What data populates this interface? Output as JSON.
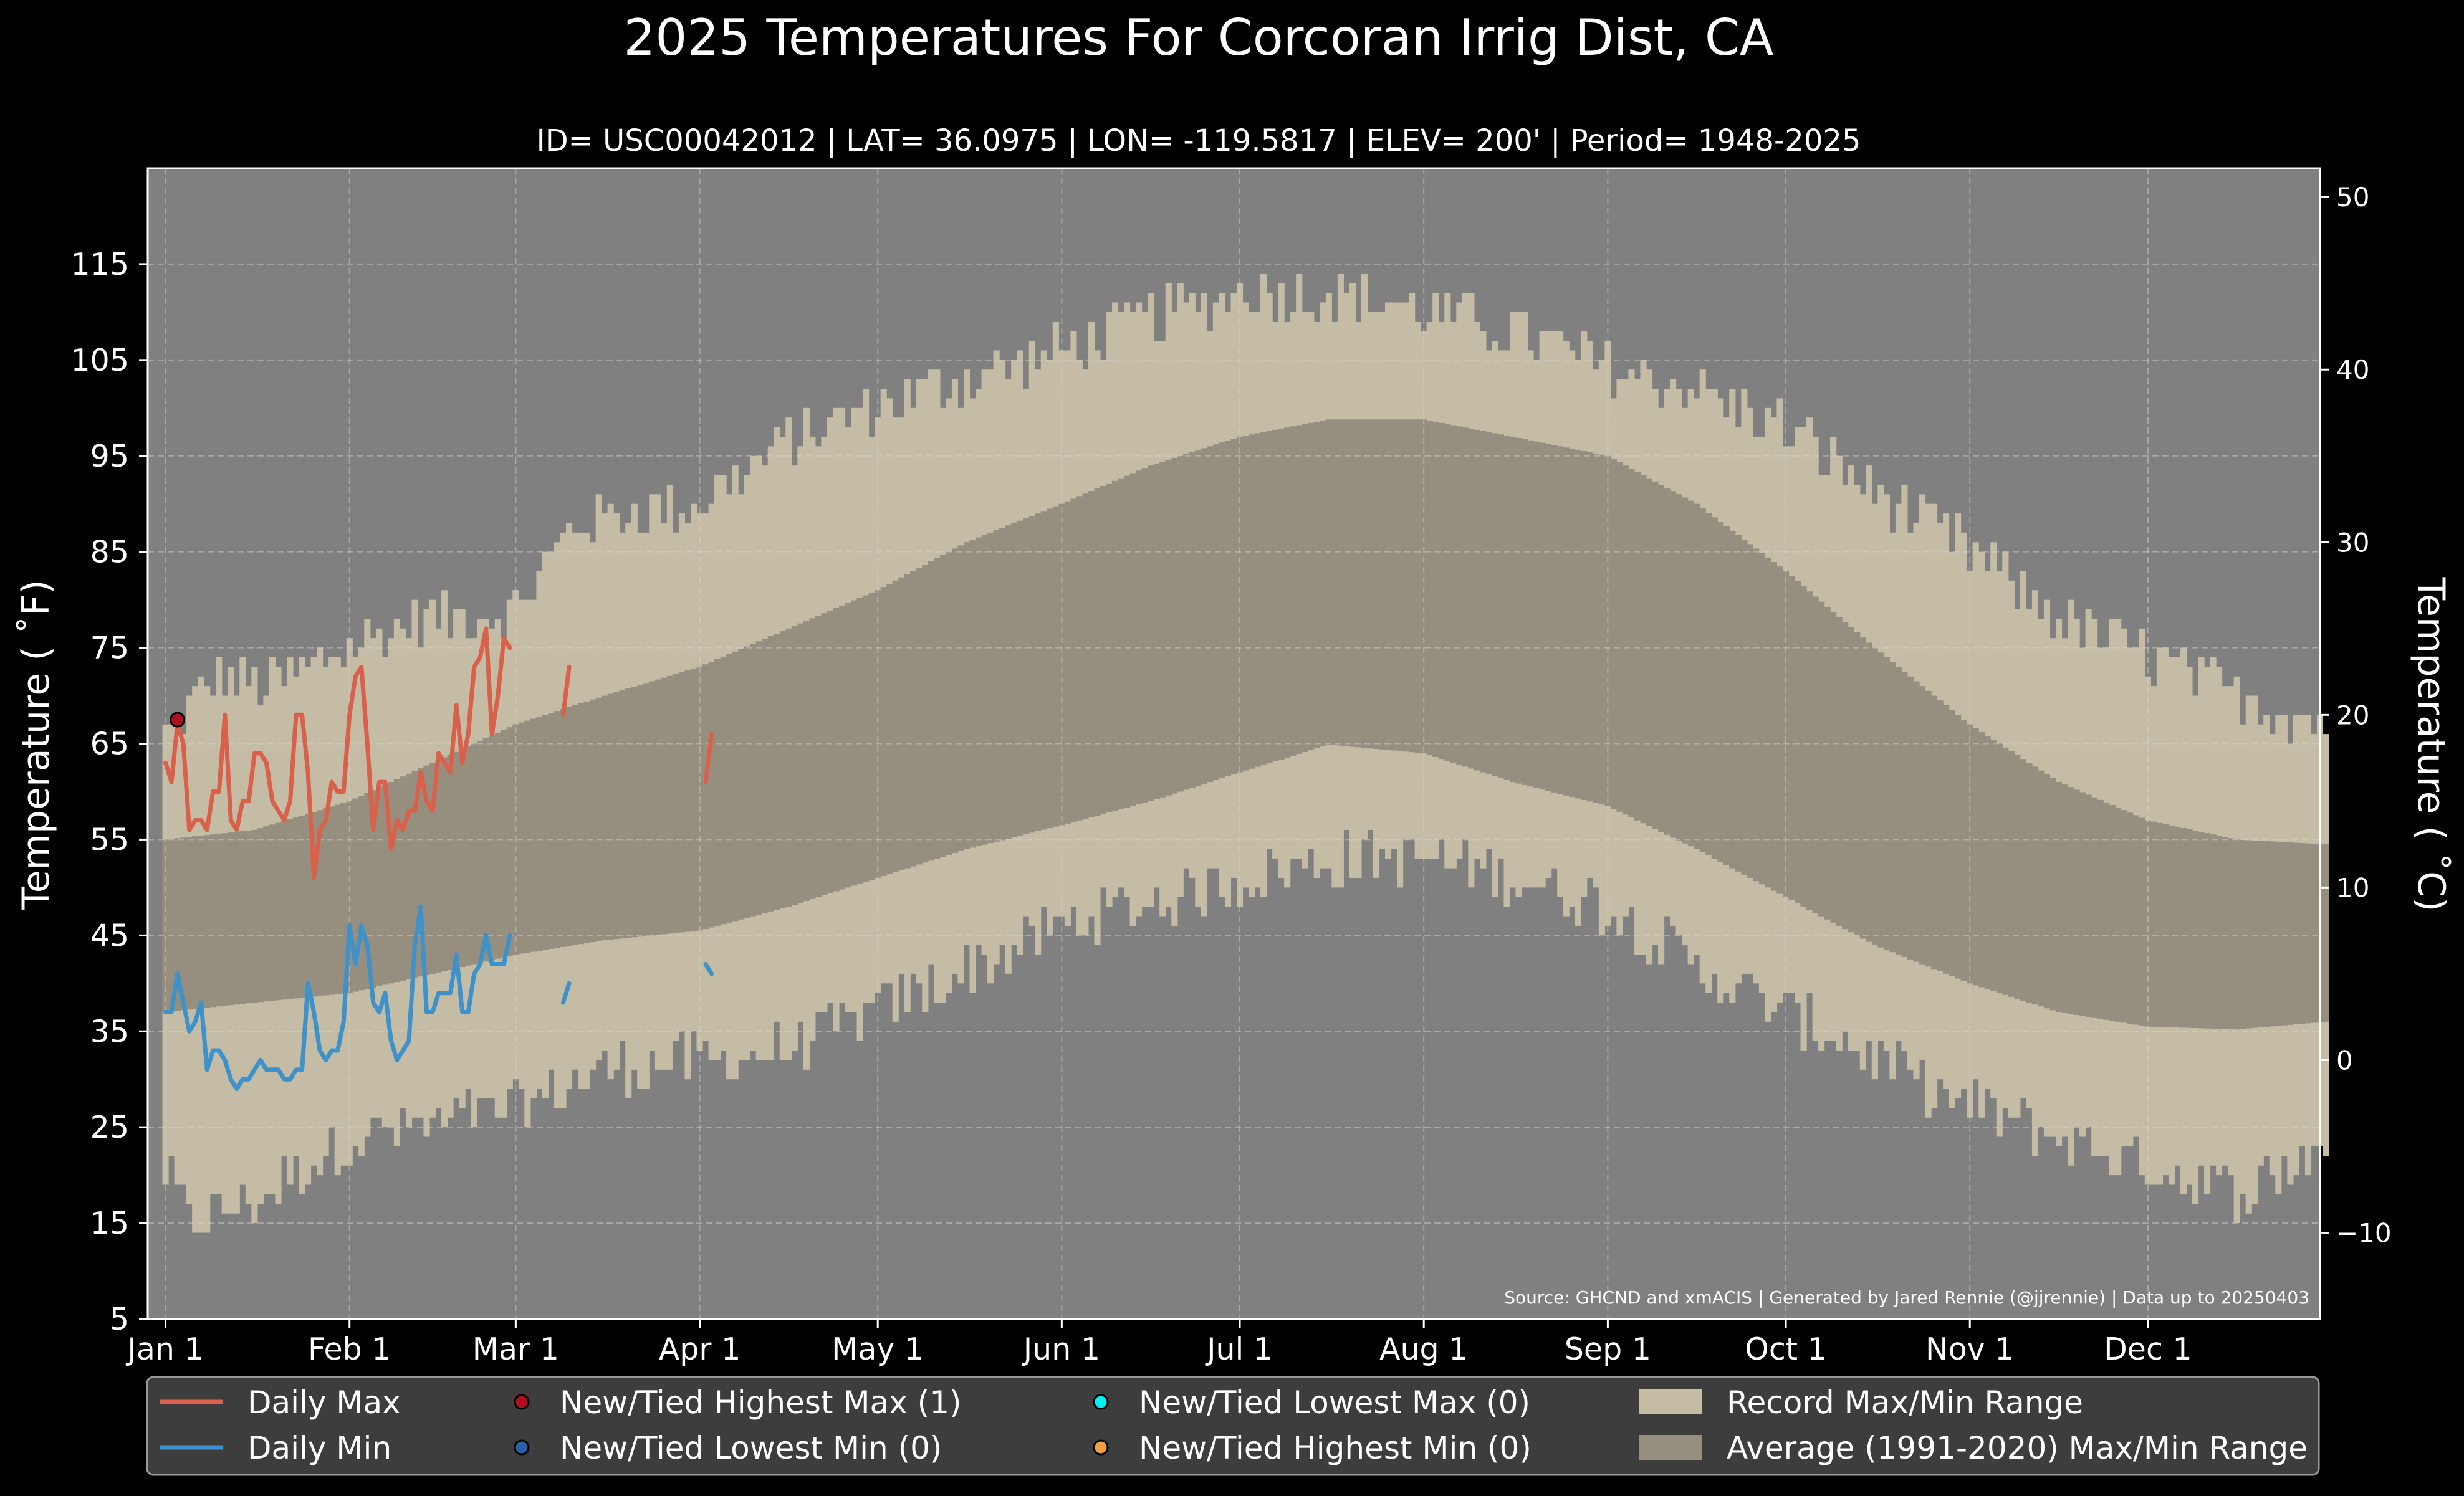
{
  "chart_data": {
    "type": "line",
    "title": "2025 Temperatures For Corcoran Irrig Dist, CA",
    "subtitle": "ID= USC00042012 | LAT= 36.0975 | LON= -119.5817 | ELEV= 200' | Period= 1948-2025",
    "ylabel_left": "Temperature ( $^\\circ$F)",
    "ylabel_left_display": "Temperature ( ˚F)",
    "ylabel_right_display": "Temperature ( ˚C)",
    "source": "Source: GHCND and xmACIS | Generated by Jared Rennie (@jjrennie) | Data up to 20250403",
    "ylim_f": [
      5,
      125
    ],
    "yticks_f": [
      5,
      15,
      25,
      35,
      45,
      55,
      65,
      75,
      85,
      95,
      105,
      115
    ],
    "yticks_c": [
      -10,
      0,
      10,
      20,
      30,
      40,
      50
    ],
    "xlim_day": [
      -2,
      364
    ],
    "xticks": [
      {
        "label": "Jan 1",
        "day": 1
      },
      {
        "label": "Feb 1",
        "day": 32
      },
      {
        "label": "Mar 1",
        "day": 60
      },
      {
        "label": "Apr 1",
        "day": 91
      },
      {
        "label": "May 1",
        "day": 121
      },
      {
        "label": "Jun 1",
        "day": 152
      },
      {
        "label": "Jul 1",
        "day": 182
      },
      {
        "label": "Aug 1",
        "day": 213
      },
      {
        "label": "Sep 1",
        "day": 244
      },
      {
        "label": "Oct 1",
        "day": 274
      },
      {
        "label": "Nov 1",
        "day": 305
      },
      {
        "label": "Dec 1",
        "day": 335
      }
    ],
    "grid": true,
    "legend_position": "bottom",
    "record_max_anchors": [
      [
        1,
        66
      ],
      [
        10,
        72
      ],
      [
        20,
        71
      ],
      [
        32,
        75
      ],
      [
        45,
        78
      ],
      [
        60,
        79
      ],
      [
        70,
        88
      ],
      [
        91,
        90
      ],
      [
        105,
        96
      ],
      [
        121,
        100
      ],
      [
        135,
        103
      ],
      [
        152,
        106
      ],
      [
        165,
        109
      ],
      [
        182,
        112
      ],
      [
        198,
        112
      ],
      [
        213,
        110
      ],
      [
        229,
        108
      ],
      [
        244,
        104
      ],
      [
        258,
        102
      ],
      [
        274,
        98
      ],
      [
        290,
        91
      ],
      [
        305,
        85
      ],
      [
        320,
        78
      ],
      [
        335,
        74
      ],
      [
        350,
        70
      ],
      [
        365,
        67
      ]
    ],
    "record_min_anchors": [
      [
        1,
        20
      ],
      [
        5,
        15
      ],
      [
        15,
        17
      ],
      [
        32,
        24
      ],
      [
        45,
        25
      ],
      [
        60,
        27
      ],
      [
        75,
        31
      ],
      [
        91,
        32
      ],
      [
        105,
        33
      ],
      [
        121,
        37
      ],
      [
        135,
        41
      ],
      [
        152,
        46
      ],
      [
        165,
        48
      ],
      [
        182,
        51
      ],
      [
        198,
        53
      ],
      [
        213,
        53
      ],
      [
        229,
        51
      ],
      [
        244,
        48
      ],
      [
        258,
        42
      ],
      [
        274,
        37
      ],
      [
        290,
        32
      ],
      [
        305,
        27
      ],
      [
        320,
        24
      ],
      [
        335,
        21
      ],
      [
        350,
        18
      ],
      [
        365,
        23
      ]
    ],
    "avg_max_anchors": [
      [
        1,
        55
      ],
      [
        16,
        56
      ],
      [
        32,
        59
      ],
      [
        46,
        63
      ],
      [
        60,
        67
      ],
      [
        75,
        70
      ],
      [
        91,
        73
      ],
      [
        106,
        77
      ],
      [
        121,
        81
      ],
      [
        136,
        86
      ],
      [
        152,
        90
      ],
      [
        167,
        94
      ],
      [
        182,
        97
      ],
      [
        197,
        98.8
      ],
      [
        213,
        98.8
      ],
      [
        228,
        97
      ],
      [
        244,
        95
      ],
      [
        259,
        90
      ],
      [
        274,
        83
      ],
      [
        289,
        75
      ],
      [
        305,
        67
      ],
      [
        320,
        61
      ],
      [
        335,
        57
      ],
      [
        350,
        55
      ],
      [
        365,
        54.5
      ]
    ],
    "avg_min_anchors": [
      [
        1,
        37
      ],
      [
        16,
        38
      ],
      [
        32,
        39
      ],
      [
        46,
        41
      ],
      [
        60,
        43
      ],
      [
        75,
        44.5
      ],
      [
        91,
        45.5
      ],
      [
        106,
        48
      ],
      [
        121,
        51
      ],
      [
        136,
        54
      ],
      [
        152,
        56.5
      ],
      [
        167,
        59
      ],
      [
        182,
        62
      ],
      [
        197,
        64.9
      ],
      [
        213,
        64
      ],
      [
        228,
        61
      ],
      [
        244,
        58.5
      ],
      [
        259,
        54
      ],
      [
        274,
        49
      ],
      [
        289,
        44
      ],
      [
        305,
        40
      ],
      [
        320,
        37
      ],
      [
        335,
        35.5
      ],
      [
        350,
        35.2
      ],
      [
        365,
        36
      ]
    ],
    "series": [
      {
        "name": "Daily Max",
        "color": "#d9614c",
        "segments": [
          [
            [
              1,
              63
            ],
            [
              2,
              61
            ],
            [
              3,
              67
            ],
            [
              4,
              65
            ],
            [
              5,
              56
            ],
            [
              6,
              57
            ],
            [
              7,
              57
            ],
            [
              8,
              56
            ],
            [
              9,
              60
            ],
            [
              10,
              60
            ],
            [
              11,
              68
            ],
            [
              12,
              57
            ],
            [
              13,
              56
            ],
            [
              14,
              59
            ],
            [
              15,
              59
            ],
            [
              16,
              64
            ],
            [
              17,
              64
            ],
            [
              18,
              63
            ],
            [
              19,
              59
            ],
            [
              20,
              58
            ],
            [
              21,
              57
            ],
            [
              22,
              59
            ],
            [
              23,
              68
            ],
            [
              24,
              68
            ],
            [
              25,
              62
            ],
            [
              26,
              51
            ],
            [
              27,
              56
            ],
            [
              28,
              57
            ],
            [
              29,
              61
            ],
            [
              30,
              60
            ],
            [
              31,
              60
            ],
            [
              32,
              68
            ],
            [
              33,
              72
            ],
            [
              34,
              73
            ],
            [
              35,
              65
            ],
            [
              36,
              56
            ],
            [
              37,
              61
            ],
            [
              38,
              61
            ],
            [
              39,
              54
            ],
            [
              40,
              57
            ],
            [
              41,
              56
            ],
            [
              42,
              58
            ],
            [
              43,
              58
            ],
            [
              44,
              62
            ],
            [
              45,
              59
            ],
            [
              46,
              58
            ],
            [
              47,
              64
            ],
            [
              48,
              63
            ],
            [
              49,
              62
            ],
            [
              50,
              69
            ],
            [
              51,
              63
            ],
            [
              52,
              66
            ],
            [
              53,
              73
            ],
            [
              54,
              74
            ],
            [
              55,
              77
            ],
            [
              56,
              66
            ],
            [
              57,
              70
            ],
            [
              58,
              76
            ],
            [
              59,
              75
            ]
          ],
          [
            [
              68,
              68
            ],
            [
              69,
              73
            ]
          ],
          [
            [
              92,
              61
            ],
            [
              93,
              66
            ]
          ]
        ]
      },
      {
        "name": "Daily Min",
        "color": "#3f91c9",
        "segments": [
          [
            [
              1,
              37
            ],
            [
              2,
              37
            ],
            [
              3,
              41
            ],
            [
              4,
              38
            ],
            [
              5,
              35
            ],
            [
              6,
              36
            ],
            [
              7,
              38
            ],
            [
              8,
              31
            ],
            [
              9,
              33
            ],
            [
              10,
              33
            ],
            [
              11,
              32
            ],
            [
              12,
              30
            ],
            [
              13,
              29
            ],
            [
              14,
              30
            ],
            [
              15,
              30
            ],
            [
              16,
              31
            ],
            [
              17,
              32
            ],
            [
              18,
              31
            ],
            [
              19,
              31
            ],
            [
              20,
              31
            ],
            [
              21,
              30
            ],
            [
              22,
              30
            ],
            [
              23,
              31
            ],
            [
              24,
              31
            ],
            [
              25,
              40
            ],
            [
              26,
              37
            ],
            [
              27,
              33
            ],
            [
              28,
              32
            ],
            [
              29,
              33
            ],
            [
              30,
              33
            ],
            [
              31,
              36
            ],
            [
              32,
              46
            ],
            [
              33,
              42
            ],
            [
              34,
              46
            ],
            [
              35,
              44
            ],
            [
              36,
              38
            ],
            [
              37,
              37
            ],
            [
              38,
              39
            ],
            [
              39,
              34
            ],
            [
              40,
              32
            ],
            [
              41,
              33
            ],
            [
              42,
              34
            ],
            [
              43,
              44
            ],
            [
              44,
              48
            ],
            [
              45,
              37
            ],
            [
              46,
              37
            ],
            [
              47,
              39
            ],
            [
              48,
              39
            ],
            [
              49,
              39
            ],
            [
              50,
              43
            ],
            [
              51,
              37
            ],
            [
              52,
              37
            ],
            [
              53,
              41
            ],
            [
              54,
              42
            ],
            [
              55,
              45
            ],
            [
              56,
              42
            ],
            [
              57,
              42
            ],
            [
              58,
              42
            ],
            [
              59,
              45
            ]
          ],
          [
            [
              68,
              38
            ],
            [
              69,
              40
            ]
          ],
          [
            [
              92,
              42
            ],
            [
              93,
              41
            ]
          ]
        ]
      }
    ],
    "record_points": [
      {
        "name": "New/Tied Highest Max (1)",
        "day": 3,
        "value": 67.5,
        "color": "#b0101d"
      }
    ],
    "legend": [
      {
        "label": "Daily Max",
        "kind": "line",
        "color": "#d9614c"
      },
      {
        "label": "Daily Min",
        "kind": "line",
        "color": "#3f91c9"
      },
      {
        "label": "New/Tied Highest Max (1)",
        "kind": "dot",
        "color": "#b0101d"
      },
      {
        "label": "New/Tied Lowest Min (0)",
        "kind": "dot",
        "color": "#2a5fa8"
      },
      {
        "label": "New/Tied Lowest Max (0)",
        "kind": "dot",
        "color": "#00f0f0"
      },
      {
        "label": "New/Tied Highest Min (0)",
        "kind": "dot",
        "color": "#f0a040"
      },
      {
        "label": "Record Max/Min Range",
        "kind": "patch",
        "color": "#c4bca5"
      },
      {
        "label": "Average (1991-2020) Max/Min Range",
        "kind": "patch",
        "color": "#968e7e"
      }
    ],
    "colors": {
      "background": "#000000",
      "plot_background": "#808080",
      "record_band": "#c4bca5",
      "average_band": "#968e7e",
      "legend_background": "#3d3d3d"
    }
  }
}
